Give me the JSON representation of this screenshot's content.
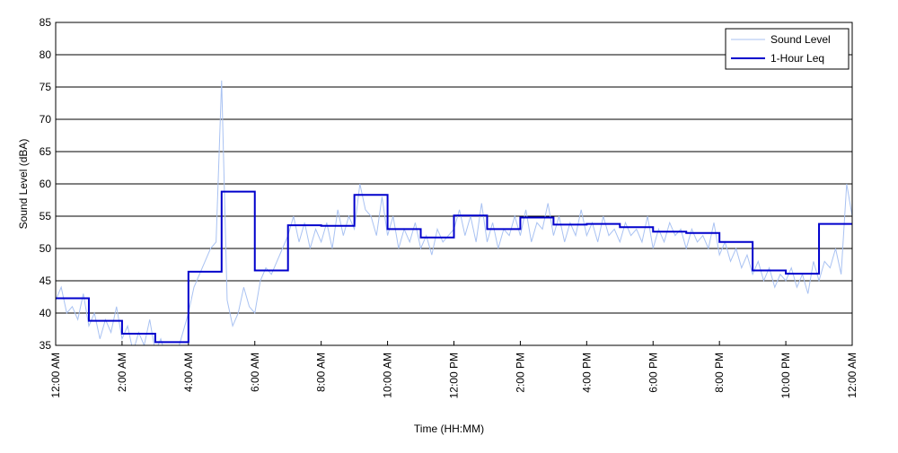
{
  "chart_data": {
    "type": "line",
    "xlabel": "Time (HH:MM)",
    "ylabel": "Sound Level (dBA)",
    "xlim": [
      0,
      1440
    ],
    "ylim": [
      35,
      85
    ],
    "xticks": [
      {
        "value": 0,
        "label": "12:00 AM"
      },
      {
        "value": 120,
        "label": "2:00 AM"
      },
      {
        "value": 240,
        "label": "4:00 AM"
      },
      {
        "value": 360,
        "label": "6:00 AM"
      },
      {
        "value": 480,
        "label": "8:00 AM"
      },
      {
        "value": 600,
        "label": "10:00 AM"
      },
      {
        "value": 720,
        "label": "12:00 PM"
      },
      {
        "value": 840,
        "label": "2:00 PM"
      },
      {
        "value": 960,
        "label": "4:00 PM"
      },
      {
        "value": 1080,
        "label": "6:00 PM"
      },
      {
        "value": 1200,
        "label": "8:00 PM"
      },
      {
        "value": 1320,
        "label": "10:00 PM"
      },
      {
        "value": 1440,
        "label": "12:00 AM"
      }
    ],
    "yticks": [
      35,
      40,
      45,
      50,
      55,
      60,
      65,
      70,
      75,
      80,
      85
    ],
    "grid": true,
    "legend": "upper right",
    "series": [
      {
        "name": "Sound Level",
        "color": "#a9c2f2",
        "step": false,
        "x": [
          0,
          10,
          20,
          30,
          40,
          50,
          60,
          70,
          80,
          90,
          100,
          110,
          120,
          130,
          140,
          150,
          160,
          170,
          180,
          190,
          200,
          210,
          220,
          230,
          240,
          250,
          260,
          270,
          280,
          290,
          300,
          310,
          320,
          330,
          340,
          350,
          360,
          370,
          380,
          390,
          400,
          410,
          420,
          430,
          440,
          450,
          460,
          470,
          480,
          490,
          500,
          510,
          520,
          530,
          540,
          550,
          560,
          570,
          580,
          590,
          600,
          610,
          620,
          630,
          640,
          650,
          660,
          670,
          680,
          690,
          700,
          710,
          720,
          730,
          740,
          750,
          760,
          770,
          780,
          790,
          800,
          810,
          820,
          830,
          840,
          850,
          860,
          870,
          880,
          890,
          900,
          910,
          920,
          930,
          940,
          950,
          960,
          970,
          980,
          990,
          1000,
          1010,
          1020,
          1030,
          1040,
          1050,
          1060,
          1070,
          1080,
          1090,
          1100,
          1110,
          1120,
          1130,
          1140,
          1150,
          1160,
          1170,
          1180,
          1190,
          1200,
          1210,
          1220,
          1230,
          1240,
          1250,
          1260,
          1270,
          1280,
          1290,
          1300,
          1310,
          1320,
          1330,
          1340,
          1350,
          1360,
          1370,
          1380,
          1390,
          1400,
          1410,
          1420,
          1430,
          1440
        ],
        "values": [
          42,
          44,
          40,
          41,
          39,
          43,
          38,
          40,
          36,
          39,
          37,
          41,
          36,
          38,
          34,
          37,
          35,
          39,
          34,
          36,
          33,
          35,
          34,
          37,
          40,
          44,
          46,
          48,
          50,
          51,
          76,
          42,
          38,
          40,
          44,
          41,
          40,
          45,
          47,
          46,
          48,
          50,
          52,
          55,
          51,
          54,
          50,
          53,
          51,
          54,
          50,
          56,
          52,
          55,
          53,
          60,
          56,
          55,
          52,
          58,
          52,
          55,
          50,
          53,
          51,
          54,
          50,
          52,
          49,
          53,
          51,
          52,
          53,
          56,
          52,
          55,
          51,
          57,
          51,
          54,
          50,
          53,
          52,
          55,
          52,
          56,
          51,
          54,
          53,
          57,
          52,
          55,
          51,
          54,
          52,
          56,
          52,
          54,
          51,
          55,
          52,
          53,
          51,
          54,
          52,
          53,
          51,
          55,
          50,
          53,
          51,
          54,
          52,
          53,
          50,
          53,
          51,
          52,
          50,
          54,
          49,
          51,
          48,
          50,
          47,
          49,
          46,
          48,
          45,
          47,
          44,
          46,
          45,
          47,
          44,
          46,
          43,
          48,
          45,
          48,
          47,
          50,
          46,
          60,
          55
        ]
      },
      {
        "name": "1-Hour Leq",
        "color": "#0000cc",
        "step": true,
        "x": [
          0,
          60,
          120,
          180,
          240,
          300,
          360,
          420,
          480,
          540,
          600,
          660,
          720,
          780,
          840,
          900,
          960,
          1020,
          1080,
          1140,
          1200,
          1260,
          1320,
          1380,
          1440
        ],
        "values": [
          42.3,
          38.8,
          36.8,
          35.5,
          46.4,
          58.8,
          46.6,
          53.6,
          53.5,
          58.3,
          53.0,
          51.7,
          55.1,
          53.0,
          54.8,
          53.7,
          53.8,
          53.3,
          52.6,
          52.4,
          51.0,
          46.6,
          46.1,
          53.8,
          53.8
        ]
      }
    ]
  }
}
